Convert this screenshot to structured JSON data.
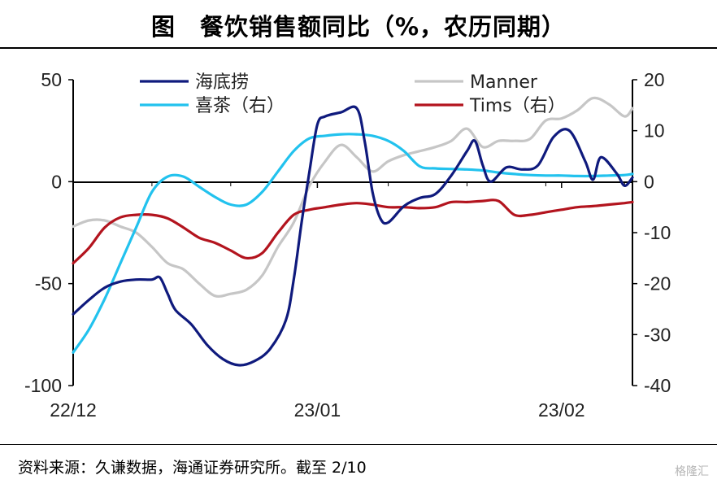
{
  "title": "图　餐饮销售额同比（%，农历同期）",
  "source": "资料来源：久谦数据，海通证券研究所。截至 2/10",
  "watermark": "格隆汇",
  "chart_data": {
    "type": "line",
    "x_tick_labels": [
      "22/12",
      "23/01",
      "23/02"
    ],
    "x_tick_positions_day": [
      0,
      31,
      62
    ],
    "x_range_day": [
      0,
      71
    ],
    "left_axis": {
      "ylim": [
        -100,
        50
      ],
      "ticks": [
        50,
        0,
        -50,
        -100
      ],
      "tick_labels": [
        "50",
        "0",
        "-50",
        "-100"
      ]
    },
    "right_axis": {
      "ylim": [
        -40,
        20
      ],
      "ticks": [
        20,
        10,
        0,
        -10,
        -20,
        -30,
        -40
      ],
      "tick_labels": [
        "20",
        "10",
        "0",
        "-10",
        "-20",
        "-30",
        "-40"
      ]
    },
    "grid": false,
    "legend_position": "top",
    "series": [
      {
        "name": "海底捞",
        "axis": "left",
        "color": "#0f1a7d",
        "points": [
          [
            0,
            -65
          ],
          [
            2,
            -58
          ],
          [
            4,
            -52
          ],
          [
            6,
            -49
          ],
          [
            8,
            -48
          ],
          [
            10,
            -48
          ],
          [
            11,
            -47
          ],
          [
            12,
            -55
          ],
          [
            13,
            -63
          ],
          [
            15,
            -70
          ],
          [
            17,
            -80
          ],
          [
            19,
            -87
          ],
          [
            21,
            -90
          ],
          [
            23,
            -88
          ],
          [
            25,
            -82
          ],
          [
            27,
            -68
          ],
          [
            28,
            -48
          ],
          [
            29,
            -20
          ],
          [
            30,
            5
          ],
          [
            31,
            28
          ],
          [
            32,
            32
          ],
          [
            34,
            34
          ],
          [
            36,
            36
          ],
          [
            37,
            20
          ],
          [
            38,
            -5
          ],
          [
            39,
            -18
          ],
          [
            40,
            -20
          ],
          [
            42,
            -12
          ],
          [
            44,
            -8
          ],
          [
            46,
            -6
          ],
          [
            48,
            3
          ],
          [
            50,
            15
          ],
          [
            51,
            20
          ],
          [
            52,
            8
          ],
          [
            53,
            0
          ],
          [
            55,
            7
          ],
          [
            57,
            6
          ],
          [
            59,
            8
          ],
          [
            61,
            22
          ],
          [
            63,
            25
          ],
          [
            65,
            10
          ],
          [
            66,
            1
          ],
          [
            67,
            12
          ],
          [
            69,
            4
          ],
          [
            70,
            -2
          ],
          [
            71,
            2
          ]
        ]
      },
      {
        "name": "Manner",
        "axis": "left",
        "color": "#c6c6c6",
        "points": [
          [
            0,
            -22
          ],
          [
            2,
            -19
          ],
          [
            4,
            -19
          ],
          [
            6,
            -22
          ],
          [
            8,
            -25
          ],
          [
            10,
            -32
          ],
          [
            12,
            -40
          ],
          [
            14,
            -43
          ],
          [
            16,
            -50
          ],
          [
            18,
            -56
          ],
          [
            20,
            -55
          ],
          [
            22,
            -53
          ],
          [
            24,
            -46
          ],
          [
            26,
            -32
          ],
          [
            28,
            -20
          ],
          [
            30,
            -2
          ],
          [
            32,
            10
          ],
          [
            34,
            18
          ],
          [
            36,
            12
          ],
          [
            38,
            5
          ],
          [
            40,
            10
          ],
          [
            42,
            13
          ],
          [
            44,
            15
          ],
          [
            46,
            17
          ],
          [
            48,
            20
          ],
          [
            50,
            26
          ],
          [
            52,
            17
          ],
          [
            54,
            20
          ],
          [
            56,
            20
          ],
          [
            58,
            21
          ],
          [
            60,
            30
          ],
          [
            62,
            31
          ],
          [
            64,
            35
          ],
          [
            66,
            41
          ],
          [
            68,
            38
          ],
          [
            70,
            32
          ],
          [
            71,
            36
          ]
        ]
      },
      {
        "name": "喜茶（右）",
        "axis": "right",
        "color": "#22c2ee",
        "points": [
          [
            0,
            -33.5
          ],
          [
            2,
            -29
          ],
          [
            4,
            -23
          ],
          [
            6,
            -16
          ],
          [
            8,
            -9
          ],
          [
            10,
            -2
          ],
          [
            12,
            1
          ],
          [
            14,
            1
          ],
          [
            16,
            -1
          ],
          [
            18,
            -3
          ],
          [
            20,
            -4.5
          ],
          [
            22,
            -4.5
          ],
          [
            24,
            -2
          ],
          [
            26,
            2
          ],
          [
            28,
            6
          ],
          [
            30,
            8.5
          ],
          [
            32,
            9
          ],
          [
            34,
            9.3
          ],
          [
            36,
            9.3
          ],
          [
            38,
            9
          ],
          [
            40,
            8
          ],
          [
            42,
            6
          ],
          [
            44,
            3
          ],
          [
            46,
            2.6
          ],
          [
            48,
            2.5
          ],
          [
            50,
            2.4
          ],
          [
            52,
            2.2
          ],
          [
            54,
            1.8
          ],
          [
            56,
            1.5
          ],
          [
            58,
            1.3
          ],
          [
            60,
            1.2
          ],
          [
            62,
            1.2
          ],
          [
            64,
            1.1
          ],
          [
            66,
            1.1
          ],
          [
            68,
            1.2
          ],
          [
            70,
            1.3
          ],
          [
            71,
            1.5
          ]
        ]
      },
      {
        "name": "Tims（右）",
        "axis": "right",
        "color": "#b3141e",
        "points": [
          [
            0,
            -16
          ],
          [
            2,
            -13
          ],
          [
            4,
            -9
          ],
          [
            6,
            -7
          ],
          [
            8,
            -6.5
          ],
          [
            10,
            -6.5
          ],
          [
            12,
            -7.2
          ],
          [
            14,
            -9
          ],
          [
            16,
            -11
          ],
          [
            18,
            -12
          ],
          [
            20,
            -13.5
          ],
          [
            22,
            -15
          ],
          [
            24,
            -14
          ],
          [
            26,
            -10
          ],
          [
            28,
            -6.5
          ],
          [
            30,
            -5.5
          ],
          [
            32,
            -5
          ],
          [
            34,
            -4.5
          ],
          [
            36,
            -4.2
          ],
          [
            38,
            -4.5
          ],
          [
            40,
            -5
          ],
          [
            42,
            -5
          ],
          [
            44,
            -5.2
          ],
          [
            46,
            -5
          ],
          [
            48,
            -4
          ],
          [
            50,
            -4
          ],
          [
            52,
            -3.8
          ],
          [
            54,
            -3.8
          ],
          [
            56,
            -6.5
          ],
          [
            58,
            -6.5
          ],
          [
            60,
            -6
          ],
          [
            62,
            -5.5
          ],
          [
            64,
            -5
          ],
          [
            66,
            -4.8
          ],
          [
            68,
            -4.5
          ],
          [
            70,
            -4.2
          ],
          [
            71,
            -4
          ]
        ]
      }
    ]
  }
}
